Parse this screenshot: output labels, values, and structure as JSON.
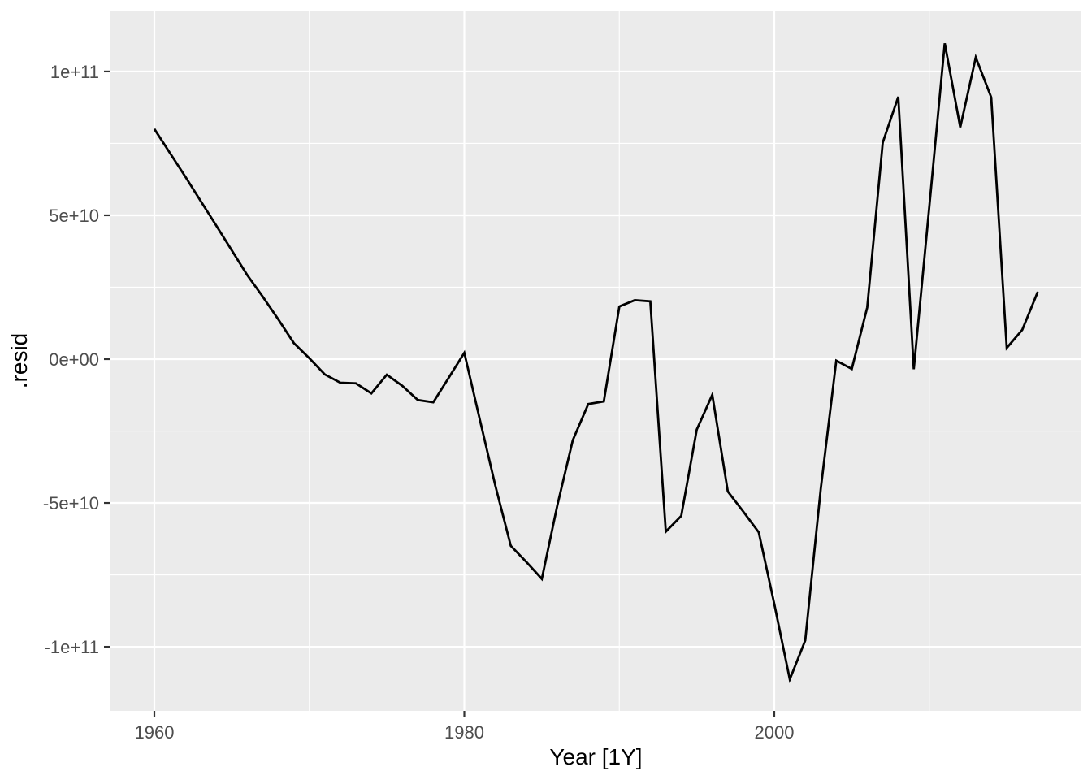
{
  "chart_data": {
    "type": "line",
    "title": "",
    "xlabel": "Year [1Y]",
    "ylabel": ".resid",
    "grid": true,
    "legend": "none",
    "panel_bg": "#EBEBEB",
    "grid_color": "#FFFFFF",
    "line_color": "#000000",
    "tick_color": "#333333",
    "tick_label_color": "#4D4D4D",
    "axis_title_color": "#000000",
    "x_range": [
      1957.1,
      2019.9
    ],
    "y_range": [
      -122300000000.0,
      121200000000.0
    ],
    "x_ticks": [
      {
        "value": 1960,
        "label": "1960"
      },
      {
        "value": 1980,
        "label": "1980"
      },
      {
        "value": 2000,
        "label": "2000"
      }
    ],
    "x_minor_ticks": [
      1970,
      1990,
      2010
    ],
    "y_ticks": [
      {
        "value": 100000000000.0,
        "label": "1e+11"
      },
      {
        "value": 50000000000.0,
        "label": "5e+10"
      },
      {
        "value": 0,
        "label": "0e+00"
      },
      {
        "value": -50000000000.0,
        "label": "-5e+10"
      },
      {
        "value": -100000000000.0,
        "label": "-1e+11"
      }
    ],
    "y_minor_ticks": [
      75000000000.0,
      25000000000.0,
      -25000000000.0,
      -75000000000.0
    ],
    "series": [
      {
        "name": ".resid",
        "x": [
          1960,
          1961,
          1962,
          1963,
          1964,
          1965,
          1966,
          1967,
          1968,
          1969,
          1970,
          1971,
          1972,
          1973,
          1974,
          1975,
          1976,
          1977,
          1978,
          1979,
          1980,
          1981,
          1982,
          1983,
          1984,
          1985,
          1986,
          1987,
          1988,
          1989,
          1990,
          1991,
          1992,
          1993,
          1994,
          1995,
          1996,
          1997,
          1998,
          1999,
          2000,
          2001,
          2002,
          2003,
          2004,
          2005,
          2006,
          2007,
          2008,
          2009,
          2010,
          2011,
          2012,
          2013,
          2014,
          2015,
          2016,
          2017
        ],
        "y": [
          80000000000.0,
          71700000000.0,
          63400000000.0,
          54900000000.0,
          46400000000.0,
          37800000000.0,
          29200000000.0,
          21700000000.0,
          13800000000.0,
          5600000000.0,
          300000000.0,
          -5300000000.0,
          -8200000000.0,
          -8400000000.0,
          -11900000000.0,
          -5400000000.0,
          -9300000000.0,
          -14200000000.0,
          -15000000000.0,
          -6400000000.0,
          2200000000.0,
          -21000000000.0,
          -43900000000.0,
          -64900000000.0,
          -70500000000.0,
          -76400000000.0,
          -50800000000.0,
          -28200000000.0,
          -15600000000.0,
          -14700000000.0,
          18300000000.0,
          20500000000.0,
          20100000000.0,
          -60000000000.0,
          -54500000000.0,
          -24500000000.0,
          -12400000000.0,
          -46000000000.0,
          -53000000000.0,
          -60200000000.0,
          -85100000000.0,
          -111300000000.0,
          -97800000000.0,
          -45100000000.0,
          -500000000.0,
          -3400000000.0,
          18000000000.0,
          75300000000.0,
          91200000000.0,
          -3500000000.0,
          53000000000.0,
          109800000000.0,
          80600000000.0,
          104900000000.0,
          91000000000.0,
          3900000000.0,
          10200000000.0,
          23400000000.0
        ]
      }
    ]
  }
}
